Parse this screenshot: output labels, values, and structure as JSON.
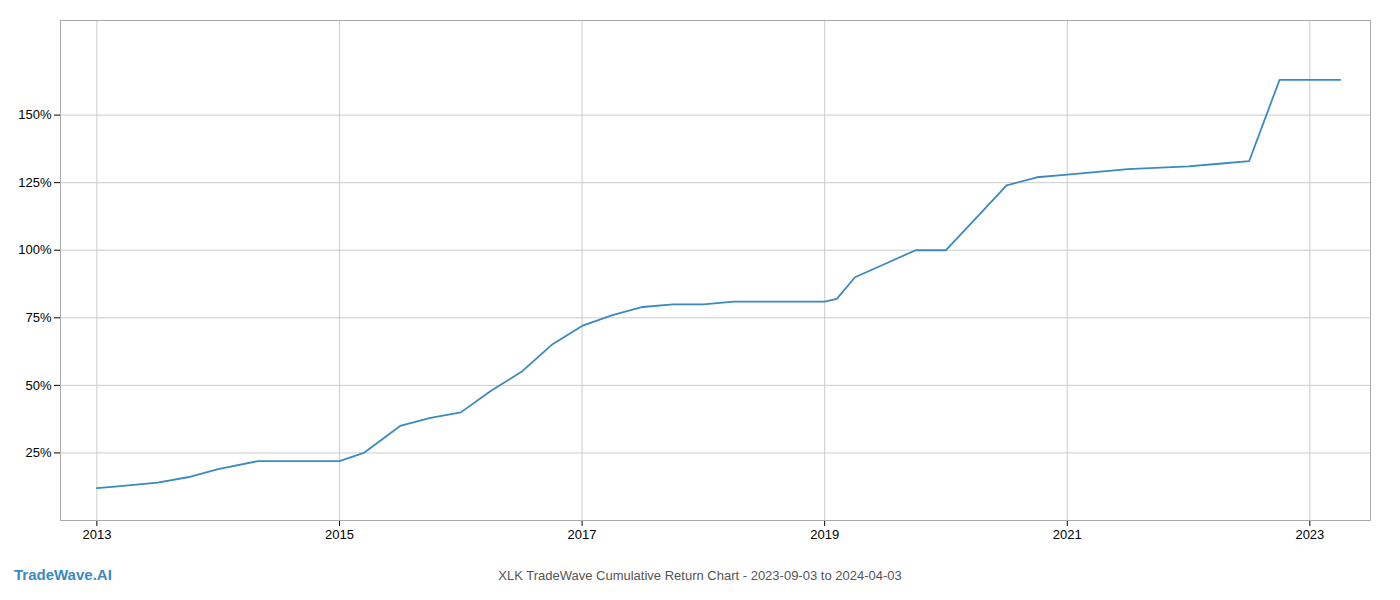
{
  "chart_data": {
    "type": "line",
    "title": "XLK TradeWave Cumulative Return Chart - 2023-09-03 to 2024-04-03",
    "annotations": [
      {
        "text": "TradeWave.AI",
        "color": "#3a8abf"
      }
    ],
    "x": [
      2013.0,
      2013.15,
      2013.5,
      2013.75,
      2014.0,
      2014.33,
      2014.67,
      2015.0,
      2015.2,
      2015.5,
      2015.75,
      2016.0,
      2016.25,
      2016.5,
      2016.75,
      2017.0,
      2017.25,
      2017.5,
      2017.75,
      2018.0,
      2018.25,
      2018.5,
      2018.75,
      2019.0,
      2019.1,
      2019.25,
      2019.5,
      2019.75,
      2020.0,
      2020.25,
      2020.5,
      2020.75,
      2021.0,
      2021.25,
      2021.5,
      2022.0,
      2022.25,
      2022.5,
      2022.75,
      2023.0,
      2023.25
    ],
    "values": [
      12,
      12.5,
      14,
      16,
      19,
      22,
      22,
      22,
      25,
      35,
      38,
      40,
      48,
      55,
      65,
      72,
      76,
      79,
      80,
      80,
      81,
      81,
      81,
      81,
      82,
      90,
      95,
      100,
      100,
      112,
      124,
      127,
      128,
      129,
      130,
      131,
      132,
      133,
      163,
      163,
      163
    ],
    "color": "#3a8abf",
    "xlim": [
      2012.7,
      2023.5
    ],
    "xticks": [
      2013,
      2015,
      2017,
      2019,
      2021,
      2023
    ],
    "ylim": [
      0,
      185
    ],
    "yticks": [
      {
        "value": 25,
        "label": "25%"
      },
      {
        "value": 50,
        "label": "50%"
      },
      {
        "value": 75,
        "label": "75%"
      },
      {
        "value": 100,
        "label": "100%"
      },
      {
        "value": 125,
        "label": "125%"
      },
      {
        "value": 150,
        "label": "150%"
      }
    ],
    "grid": true
  }
}
